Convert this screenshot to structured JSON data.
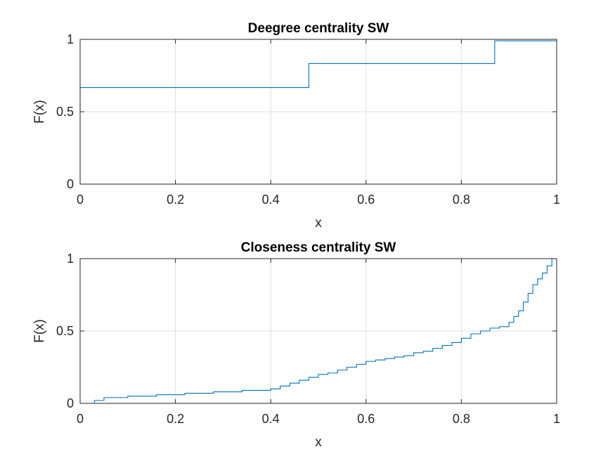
{
  "chart_data": [
    {
      "type": "line",
      "style": "stairs",
      "title": "Deegree centrality SW",
      "xlabel": "x",
      "ylabel": "F(x)",
      "xlim": [
        0,
        1
      ],
      "ylim": [
        0,
        1
      ],
      "xticks": [
        "0",
        "0.2",
        "0.4",
        "0.6",
        "0.8",
        "1"
      ],
      "yticks": [
        "0",
        "0.5",
        "1"
      ],
      "grid": true,
      "color": "#0072BD",
      "series": [
        {
          "x": [
            0,
            0,
            0.48,
            0.48,
            0.87,
            0.87,
            1
          ],
          "y": [
            0,
            0.667,
            0.667,
            0.833,
            0.833,
            0.99,
            0.99
          ]
        }
      ]
    },
    {
      "type": "line",
      "style": "stairs",
      "title": "Closeness centrality SW",
      "xlabel": "x",
      "ylabel": "F(x)",
      "xlim": [
        0,
        1
      ],
      "ylim": [
        0,
        1
      ],
      "xticks": [
        "0",
        "0.2",
        "0.4",
        "0.6",
        "0.8",
        "1"
      ],
      "yticks": [
        "0",
        "0.5",
        "1"
      ],
      "grid": true,
      "color": "#0072BD",
      "series": [
        {
          "x": [
            0.03,
            0.03,
            0.05,
            0.05,
            0.1,
            0.1,
            0.16,
            0.16,
            0.22,
            0.22,
            0.28,
            0.28,
            0.34,
            0.34,
            0.4,
            0.4,
            0.42,
            0.42,
            0.44,
            0.44,
            0.46,
            0.46,
            0.48,
            0.48,
            0.5,
            0.5,
            0.52,
            0.52,
            0.54,
            0.54,
            0.56,
            0.56,
            0.58,
            0.58,
            0.6,
            0.6,
            0.62,
            0.62,
            0.64,
            0.64,
            0.66,
            0.66,
            0.68,
            0.68,
            0.7,
            0.7,
            0.72,
            0.72,
            0.74,
            0.74,
            0.76,
            0.76,
            0.78,
            0.78,
            0.8,
            0.8,
            0.82,
            0.82,
            0.84,
            0.84,
            0.86,
            0.86,
            0.88,
            0.88,
            0.9,
            0.9,
            0.91,
            0.91,
            0.92,
            0.92,
            0.93,
            0.93,
            0.94,
            0.94,
            0.95,
            0.95,
            0.96,
            0.96,
            0.97,
            0.97,
            0.98,
            0.98,
            0.99,
            0.99,
            1.0
          ],
          "y": [
            0,
            0.02,
            0.02,
            0.04,
            0.04,
            0.05,
            0.05,
            0.06,
            0.06,
            0.07,
            0.07,
            0.08,
            0.08,
            0.09,
            0.09,
            0.1,
            0.1,
            0.12,
            0.12,
            0.14,
            0.14,
            0.16,
            0.16,
            0.18,
            0.18,
            0.2,
            0.2,
            0.21,
            0.21,
            0.23,
            0.23,
            0.25,
            0.25,
            0.27,
            0.27,
            0.29,
            0.29,
            0.3,
            0.3,
            0.31,
            0.31,
            0.32,
            0.32,
            0.33,
            0.33,
            0.35,
            0.35,
            0.36,
            0.36,
            0.38,
            0.38,
            0.4,
            0.4,
            0.42,
            0.42,
            0.45,
            0.45,
            0.48,
            0.48,
            0.5,
            0.5,
            0.52,
            0.52,
            0.53,
            0.53,
            0.56,
            0.56,
            0.6,
            0.6,
            0.64,
            0.64,
            0.7,
            0.7,
            0.76,
            0.76,
            0.82,
            0.82,
            0.86,
            0.86,
            0.9,
            0.9,
            0.95,
            0.95,
            1.0,
            1.0
          ]
        }
      ]
    }
  ]
}
